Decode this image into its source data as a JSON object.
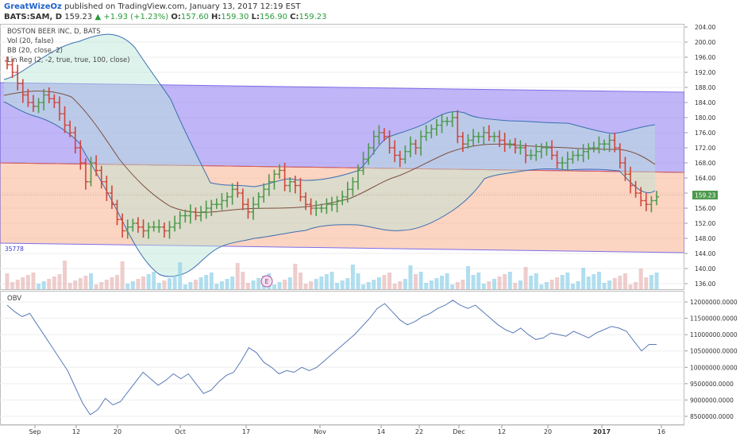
{
  "header": {
    "author": "GreatWizeOz",
    "published": "published on TradingView.com, January 13, 2017 12:19 EST",
    "symbol": "BATS:SAM, D",
    "last": "159.23",
    "change_icon": "triangle-up-icon",
    "change": "+1.93 (+1.23%)",
    "o_label": "O:",
    "o": "157.60",
    "h_label": "H:",
    "h": "159.30",
    "l_label": "L:",
    "l": "156.90",
    "c_label": "C:",
    "c": "159.23"
  },
  "overlays": [
    "BOSTON BEER INC, D, BATS",
    "Vol (20, false)",
    "BB (20, close, 2)",
    "Lin Reg (2, -2, true, true, 100, close)"
  ],
  "price_axis": {
    "labels": [
      "204.00",
      "200.00",
      "196.00",
      "192.00",
      "188.00",
      "184.00",
      "180.00",
      "176.00",
      "172.00",
      "168.00",
      "164.00",
      "160.00",
      "156.00",
      "152.00",
      "148.00",
      "144.00",
      "140.00",
      "136.00"
    ],
    "current_price": "159.23"
  },
  "volume_label": "35778",
  "event_marker": "E",
  "obv": {
    "title": "OBV",
    "labels": [
      "12000000.0000",
      "11500000.0000",
      "11000000.0000",
      "10500000.0000",
      "10000000.0000",
      "9500000.0000",
      "9000000.0000",
      "8500000.0000"
    ]
  },
  "x_axis": [
    "Sep",
    "12",
    "20",
    "Oct",
    "17",
    "Nov",
    "14",
    "22",
    "Dec",
    "12",
    "20",
    "2017",
    "16"
  ],
  "colors": {
    "up": "#4c9a4c",
    "down": "#d0453a",
    "upper_channel": "#8a78f0",
    "lower_channel": "#f7b090",
    "bollinger": "#3a6fb0",
    "obv_line": "#5a7ab8"
  },
  "chart_data": {
    "type": "bar",
    "symbol": "BATS:SAM",
    "timeframe": "D",
    "ylim": [
      134,
      206
    ],
    "close_series": [
      194,
      192,
      189,
      186,
      184,
      183,
      184,
      186,
      185,
      184,
      181,
      178,
      176,
      172,
      168,
      163,
      168,
      166,
      163,
      160,
      157,
      153,
      150,
      151,
      152,
      151,
      150,
      151,
      151,
      151,
      150,
      151,
      152,
      154,
      154,
      155,
      154,
      155,
      156,
      157,
      157,
      158,
      159,
      161,
      160,
      157,
      155,
      157,
      159,
      161,
      163,
      165,
      166,
      162,
      163,
      162,
      159,
      157,
      156,
      156,
      156,
      157,
      157,
      158,
      159,
      161,
      163,
      166,
      169,
      172,
      175,
      176,
      175,
      172,
      170,
      169,
      171,
      173,
      172,
      175,
      176,
      177,
      178,
      179,
      179,
      180,
      175,
      173,
      174,
      175,
      175,
      176,
      175,
      175,
      174,
      173,
      173,
      172,
      172,
      170,
      170,
      171,
      172,
      172,
      170,
      168,
      168,
      169,
      170,
      170,
      171,
      172,
      172,
      173,
      173,
      174,
      172,
      168,
      165,
      162,
      160,
      158,
      157,
      158,
      159
    ],
    "ohlc_last": {
      "open": 157.6,
      "high": 159.3,
      "low": 156.9,
      "close": 159.23
    },
    "change": 1.93,
    "change_pct": 1.23,
    "obv": {
      "ylim": [
        8400000,
        12200000
      ],
      "values": [
        11900000,
        11700000,
        11550000,
        11650000,
        11300000,
        10950000,
        10600000,
        10250000,
        9900000,
        9400000,
        8900000,
        8550000,
        8700000,
        9050000,
        8850000,
        8950000,
        9250000,
        9550000,
        9850000,
        9650000,
        9450000,
        9600000,
        9800000,
        9650000,
        9800000,
        9500000,
        9200000,
        9300000,
        9550000,
        9750000,
        9850000,
        10200000,
        10600000,
        10450000,
        10150000,
        10000000,
        9800000,
        9900000,
        9850000,
        10000000,
        9900000,
        10000000,
        10200000,
        10400000,
        10600000,
        10800000,
        11000000,
        11250000,
        11500000,
        11800000,
        11950000,
        11700000,
        11450000,
        11300000,
        11400000,
        11550000,
        11650000,
        11800000,
        11900000,
        12050000,
        11900000,
        11800000,
        11900000,
        11700000,
        11500000,
        11300000,
        11150000,
        11050000,
        11200000,
        11000000,
        10850000,
        10900000,
        11050000,
        11000000,
        10950000,
        11100000,
        11000000,
        10900000,
        11050000,
        11150000,
        11250000,
        11200000,
        11100000,
        10800000,
        10500000,
        10700000,
        10700000
      ]
    }
  }
}
